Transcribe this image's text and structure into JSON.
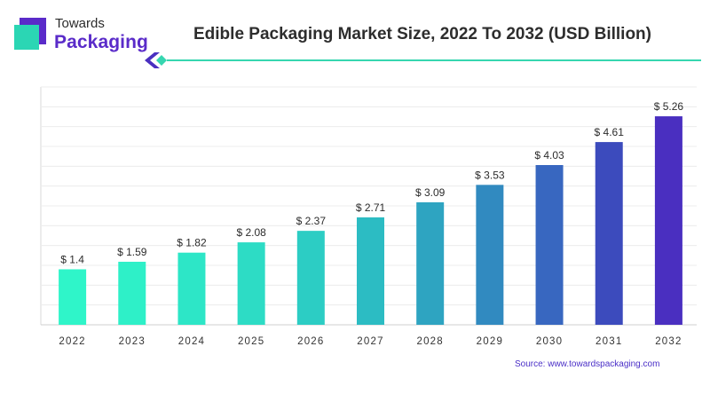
{
  "brand": {
    "line1": "Towards",
    "line2": "Packaging",
    "colors": {
      "mark_teal": "#2bd6b4",
      "mark_purple": "#5a2bc9",
      "accent_line": "#36d6b0"
    }
  },
  "title": "Edible Packaging Market Size, 2022 To 2032 (USD Billion)",
  "source": "Source: www.towardspackaging.com",
  "chart_data": {
    "type": "bar",
    "title": "Edible Packaging Market Size, 2022 To 2032 (USD Billion)",
    "xlabel": "",
    "ylabel": "",
    "categories": [
      "2022",
      "2023",
      "2024",
      "2025",
      "2026",
      "2027",
      "2028",
      "2029",
      "2030",
      "2031",
      "2032"
    ],
    "values": [
      1.4,
      1.59,
      1.82,
      2.08,
      2.37,
      2.71,
      3.09,
      3.53,
      4.03,
      4.61,
      5.26
    ],
    "value_labels": [
      "$ 1.4",
      "$ 1.59",
      "$ 1.82",
      "$ 2.08",
      "$ 2.37",
      "$ 2.71",
      "$ 3.09",
      "$ 3.53",
      "$ 4.03",
      "$ 4.61",
      "$ 5.26"
    ],
    "ylim": [
      0,
      6
    ],
    "grid": true,
    "colors": [
      "#2ff5c9",
      "#2ef0c8",
      "#2de6c7",
      "#2ddcc5",
      "#2ccdc4",
      "#2cbcc3",
      "#2ea4c1",
      "#318ac0",
      "#3867c0",
      "#3c4bbd",
      "#4a2fc0"
    ]
  }
}
